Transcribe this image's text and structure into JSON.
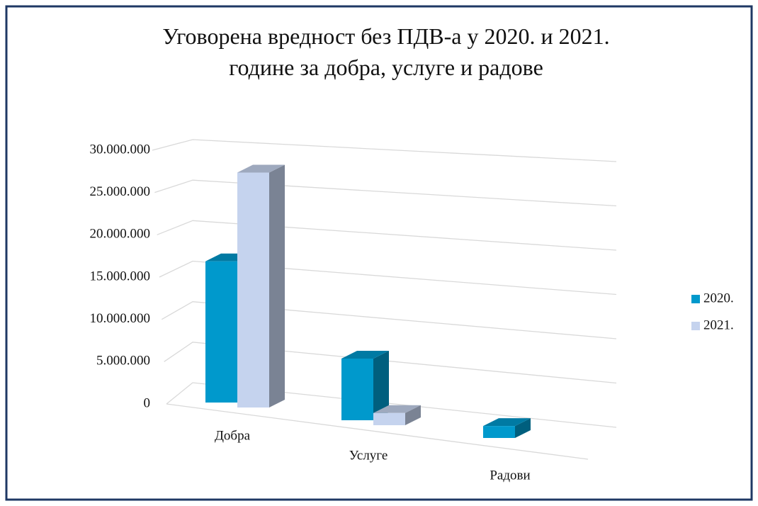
{
  "chart_data": {
    "type": "bar3d",
    "title": "Уговорена вредност без ПДВ-а у 2020. и 2021. године за добра, услуге и радове",
    "categories": [
      "Добра",
      "Услуге",
      "Радови"
    ],
    "series": [
      {
        "name": "2020.",
        "color": "#0099cc",
        "values": [
          16700000,
          7500000,
          1500000
        ]
      },
      {
        "name": "2021.",
        "color": "#c5d3ee",
        "values": [
          28000000,
          1500000,
          0
        ]
      }
    ],
    "ylim": [
      0,
      30000000
    ],
    "yticks": [
      0,
      {
        "value": 5000000,
        "label": "5.000.000"
      },
      {
        "value": 10000000,
        "label": "10.000.000"
      },
      {
        "value": 15000000,
        "label": "15.000.000"
      },
      {
        "value": 20000000,
        "label": "20.000.000"
      },
      {
        "value": 25000000,
        "label": "25.000.000"
      },
      {
        "value": 30000000,
        "label": "30.000.000"
      }
    ],
    "grid": true,
    "legend": "right"
  }
}
